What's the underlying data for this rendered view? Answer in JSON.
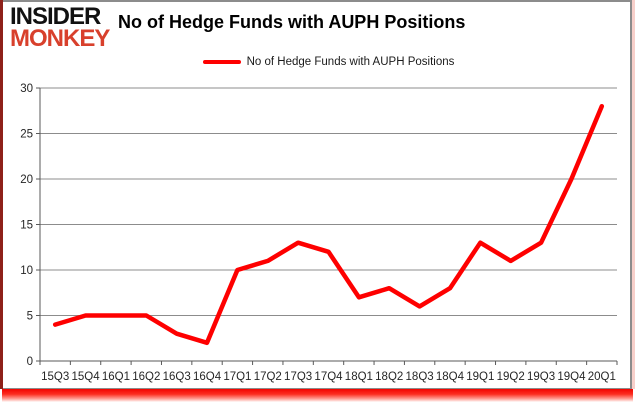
{
  "brand": {
    "line1": "INSIDER",
    "line2": "MONKEY"
  },
  "header": {
    "title": "No of Hedge Funds with AUPH Positions"
  },
  "legend": {
    "label": "No of Hedge Funds with AUPH Positions"
  },
  "colors": {
    "line": "#fe0000",
    "grid": "#8c8c8c",
    "axis": "#595959",
    "axis_text": "#262626",
    "brand_black": "#111111",
    "brand_red": "#d8402c",
    "border_gray": "#8c8c8c",
    "left_stripe": "#8e2019",
    "right_pink": "#f7cfca",
    "bottom_glow": "#f20400"
  },
  "chart_data": {
    "type": "line",
    "title": "No of Hedge Funds with AUPH Positions",
    "categories": [
      "15Q3",
      "15Q4",
      "16Q1",
      "16Q2",
      "16Q3",
      "16Q4",
      "17Q1",
      "17Q2",
      "17Q3",
      "17Q4",
      "18Q1",
      "18Q2",
      "18Q3",
      "18Q4",
      "19Q1",
      "19Q2",
      "19Q3",
      "19Q4",
      "20Q1"
    ],
    "series": [
      {
        "name": "No of Hedge Funds with AUPH Positions",
        "values": [
          4,
          5,
          5,
          5,
          3,
          2,
          10,
          11,
          13,
          12,
          7,
          8,
          6,
          8,
          13,
          11,
          13,
          20,
          28
        ]
      }
    ],
    "xlabel": "",
    "ylabel": "",
    "ylim": [
      0,
      30
    ],
    "ytick_step": 5,
    "grid": true,
    "legend_position": "top-center"
  }
}
